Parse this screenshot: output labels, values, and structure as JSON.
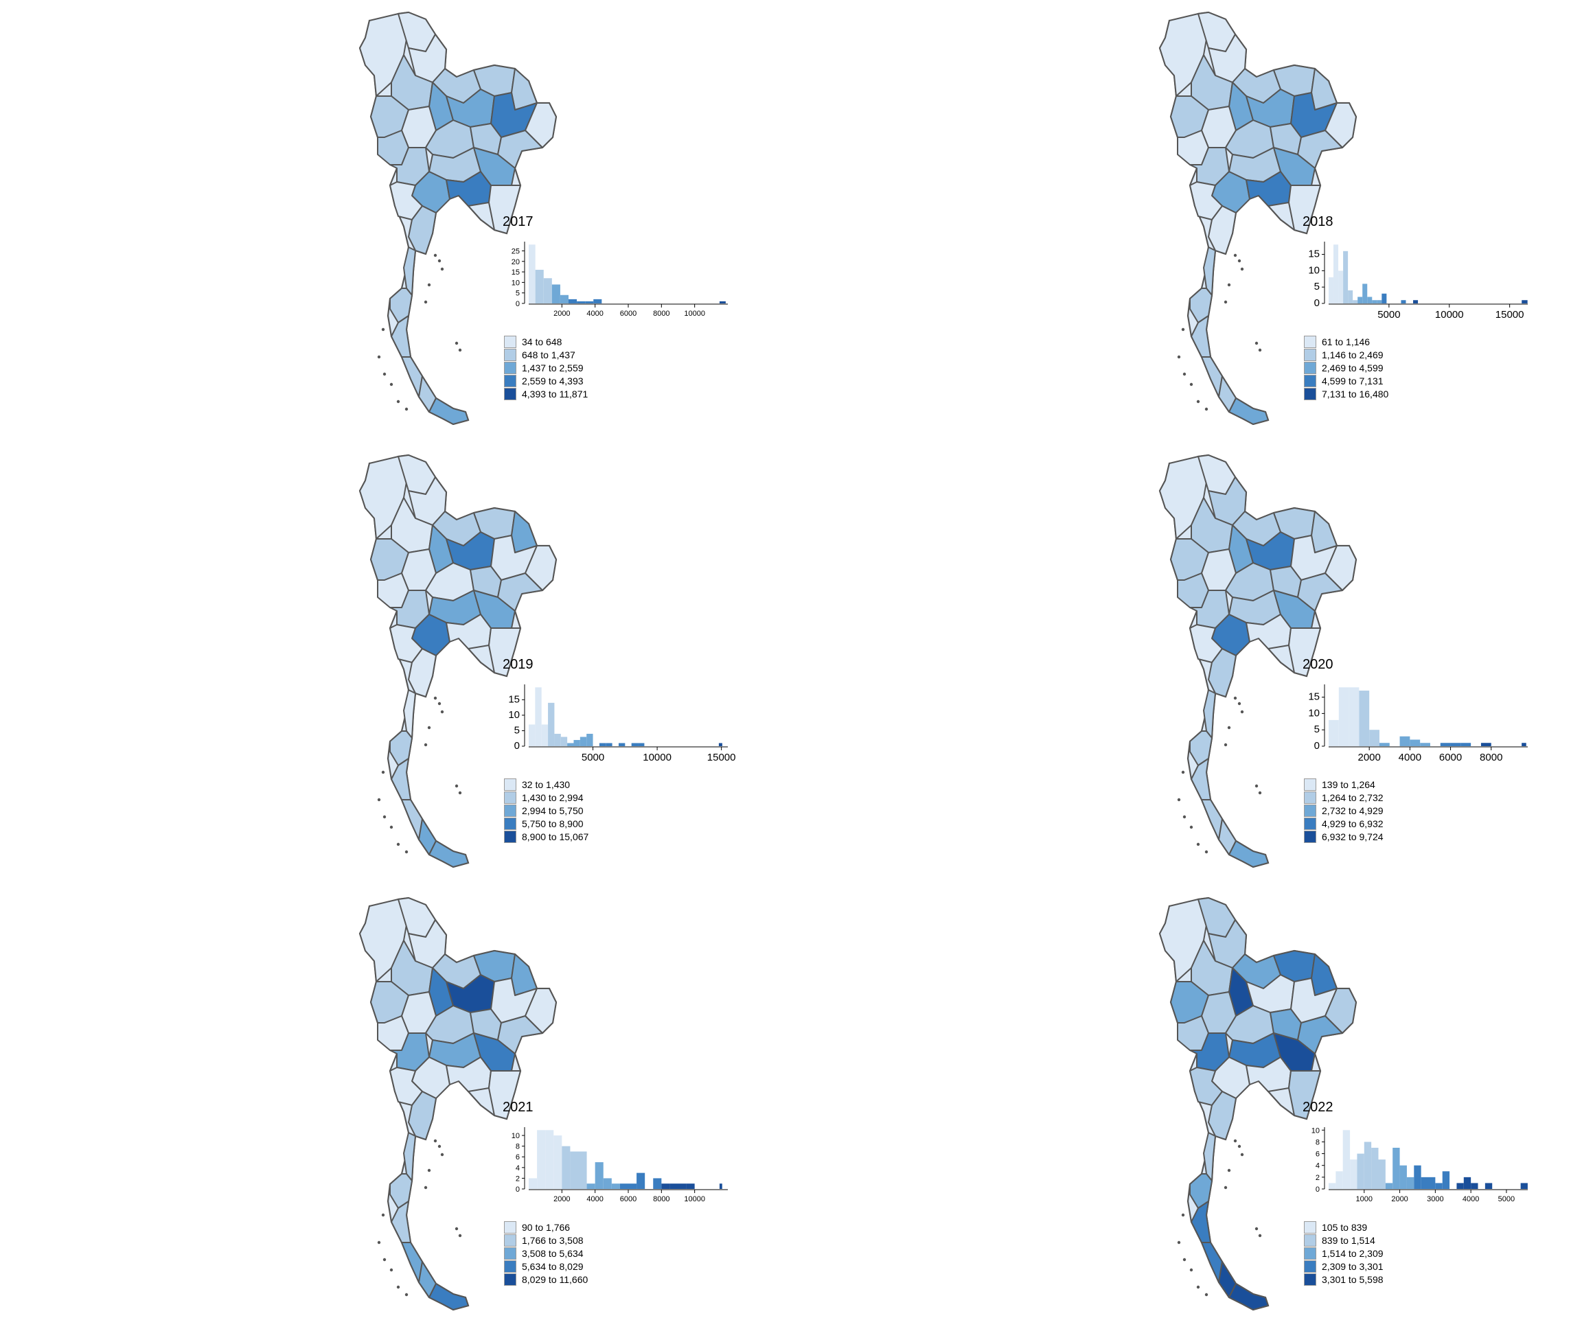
{
  "colors": [
    "#dbe8f5",
    "#b1cde6",
    "#6fa8d6",
    "#3a7dc0",
    "#1a4f9a"
  ],
  "panels": [
    {
      "title": "2017",
      "legend": [
        "34 to 648",
        "648 to 1,437",
        "1,437 to 2,559",
        "2,559 to 4,393",
        "4,393 to 11,871"
      ],
      "breaks": [
        34,
        648,
        1437,
        2559,
        4393,
        11871
      ],
      "y_ticks": [
        0,
        5,
        10,
        15,
        20,
        25
      ],
      "x_ticks": [
        2000,
        4000,
        6000,
        8000,
        10000
      ],
      "xlim": [
        0,
        12000
      ],
      "bins": [
        [
          0,
          400,
          28
        ],
        [
          400,
          900,
          16
        ],
        [
          900,
          1400,
          12
        ],
        [
          1400,
          1900,
          9
        ],
        [
          1900,
          2400,
          4
        ],
        [
          2400,
          2900,
          2
        ],
        [
          2900,
          3400,
          1
        ],
        [
          3400,
          3900,
          1
        ],
        [
          3900,
          4400,
          2
        ],
        [
          11500,
          11871,
          1
        ]
      ],
      "map_counts": [
        15,
        40,
        12,
        6,
        3
      ]
    },
    {
      "title": "2018",
      "legend": [
        "61 to 1,146",
        "1,146 to 2,469",
        "2,469 to 4,599",
        "4,599 to 7,131",
        "7,131 to 16,480"
      ],
      "breaks": [
        61,
        1146,
        2469,
        4599,
        7131,
        16480
      ],
      "y_ticks": [
        0,
        5,
        10,
        15
      ],
      "x_ticks": [
        5000,
        10000,
        15000
      ],
      "xlim": [
        0,
        16500
      ],
      "bins": [
        [
          0,
          400,
          8
        ],
        [
          400,
          800,
          18
        ],
        [
          800,
          1200,
          10
        ],
        [
          1200,
          1600,
          16
        ],
        [
          1600,
          2000,
          4
        ],
        [
          2000,
          2400,
          1
        ],
        [
          2400,
          2800,
          2
        ],
        [
          2800,
          3200,
          6
        ],
        [
          3200,
          3600,
          2
        ],
        [
          3600,
          4000,
          1
        ],
        [
          4000,
          4400,
          1
        ],
        [
          4400,
          4800,
          3
        ],
        [
          6000,
          6400,
          1
        ],
        [
          7000,
          7400,
          1
        ],
        [
          16000,
          16480,
          1
        ]
      ],
      "map_counts": [
        22,
        36,
        13,
        4,
        1
      ]
    },
    {
      "title": "2019",
      "legend": [
        "32 to 1,430",
        "1,430 to 2,994",
        "2,994 to 5,750",
        "5,750 to 8,900",
        "8,900 to 15,067"
      ],
      "breaks": [
        32,
        1430,
        2994,
        5750,
        8900,
        15067
      ],
      "y_ticks": [
        0,
        5,
        10,
        15
      ],
      "x_ticks": [
        5000,
        10000,
        15000
      ],
      "xlim": [
        0,
        15500
      ],
      "bins": [
        [
          0,
          500,
          7
        ],
        [
          500,
          1000,
          19
        ],
        [
          1000,
          1500,
          7
        ],
        [
          1500,
          2000,
          14
        ],
        [
          2000,
          2500,
          4
        ],
        [
          2500,
          3000,
          3
        ],
        [
          3000,
          3500,
          1
        ],
        [
          3500,
          4000,
          2
        ],
        [
          4000,
          4500,
          3
        ],
        [
          4500,
          5000,
          4
        ],
        [
          5500,
          6000,
          1
        ],
        [
          6000,
          6500,
          1
        ],
        [
          7000,
          7500,
          1
        ],
        [
          8000,
          8500,
          1
        ],
        [
          8500,
          9000,
          1
        ],
        [
          14800,
          15067,
          1
        ]
      ],
      "map_counts": [
        30,
        24,
        15,
        5,
        2
      ]
    },
    {
      "title": "2020",
      "legend": [
        "139 to 1,264",
        "1,264 to 2,732",
        "2,732 to 4,929",
        "4,929 to 6,932",
        "6,932 to 9,724"
      ],
      "breaks": [
        139,
        1264,
        2732,
        4929,
        6932,
        9724
      ],
      "y_ticks": [
        0,
        5,
        10,
        15
      ],
      "x_ticks": [
        2000,
        4000,
        6000,
        8000
      ],
      "xlim": [
        0,
        9800
      ],
      "bins": [
        [
          0,
          500,
          8
        ],
        [
          500,
          1000,
          18
        ],
        [
          1000,
          1500,
          18
        ],
        [
          1500,
          2000,
          17
        ],
        [
          2000,
          2500,
          5
        ],
        [
          2500,
          3000,
          1
        ],
        [
          3500,
          4000,
          3
        ],
        [
          4000,
          4500,
          2
        ],
        [
          4500,
          5000,
          1
        ],
        [
          5500,
          6000,
          1
        ],
        [
          6000,
          6500,
          1
        ],
        [
          6500,
          7000,
          1
        ],
        [
          7500,
          8000,
          1
        ],
        [
          9500,
          9724,
          1
        ]
      ],
      "map_counts": [
        22,
        40,
        9,
        3,
        2
      ]
    },
    {
      "title": "2021",
      "legend": [
        "90 to 1,766",
        "1,766 to 3,508",
        "3,508 to 5,634",
        "5,634 to 8,029",
        "8,029 to 11,660"
      ],
      "breaks": [
        90,
        1766,
        3508,
        5634,
        8029,
        11660
      ],
      "y_ticks": [
        0,
        2,
        4,
        6,
        8,
        10
      ],
      "x_ticks": [
        2000,
        4000,
        6000,
        8000,
        10000
      ],
      "xlim": [
        0,
        12000
      ],
      "bins": [
        [
          0,
          500,
          2
        ],
        [
          500,
          1000,
          11
        ],
        [
          1000,
          1500,
          11
        ],
        [
          1500,
          2000,
          10
        ],
        [
          2000,
          2500,
          8
        ],
        [
          2500,
          3000,
          7
        ],
        [
          3000,
          3500,
          7
        ],
        [
          3500,
          4000,
          1
        ],
        [
          4000,
          4500,
          5
        ],
        [
          4500,
          5000,
          2
        ],
        [
          5000,
          5500,
          1
        ],
        [
          5500,
          6000,
          1
        ],
        [
          6000,
          6500,
          1
        ],
        [
          6500,
          7000,
          3
        ],
        [
          7500,
          8000,
          2
        ],
        [
          8000,
          8500,
          1
        ],
        [
          8500,
          9000,
          1
        ],
        [
          9000,
          9500,
          1
        ],
        [
          9500,
          10000,
          1
        ],
        [
          11500,
          11660,
          1
        ]
      ],
      "map_counts": [
        28,
        24,
        13,
        7,
        4
      ]
    },
    {
      "title": "2022",
      "legend": [
        "105 to 839",
        "839 to 1,514",
        "1,514 to 2,309",
        "2,309 to 3,301",
        "3,301 to 5,598"
      ],
      "breaks": [
        105,
        839,
        1514,
        2309,
        3301,
        5598
      ],
      "y_ticks": [
        0,
        2,
        4,
        6,
        8,
        10
      ],
      "x_ticks": [
        1000,
        2000,
        3000,
        4000,
        5000
      ],
      "xlim": [
        0,
        5600
      ],
      "bins": [
        [
          0,
          200,
          1
        ],
        [
          200,
          400,
          3
        ],
        [
          400,
          600,
          10
        ],
        [
          600,
          800,
          5
        ],
        [
          800,
          1000,
          6
        ],
        [
          1000,
          1200,
          8
        ],
        [
          1200,
          1400,
          7
        ],
        [
          1400,
          1600,
          5
        ],
        [
          1600,
          1800,
          1
        ],
        [
          1800,
          2000,
          7
        ],
        [
          2000,
          2200,
          4
        ],
        [
          2200,
          2400,
          2
        ],
        [
          2400,
          2600,
          4
        ],
        [
          2600,
          2800,
          2
        ],
        [
          2800,
          3000,
          2
        ],
        [
          3000,
          3200,
          1
        ],
        [
          3200,
          3400,
          3
        ],
        [
          3600,
          3800,
          1
        ],
        [
          3800,
          4000,
          2
        ],
        [
          4000,
          4200,
          1
        ],
        [
          4400,
          4600,
          1
        ],
        [
          5400,
          5598,
          1
        ]
      ],
      "map_counts": [
        16,
        24,
        12,
        14,
        10
      ]
    }
  ]
}
